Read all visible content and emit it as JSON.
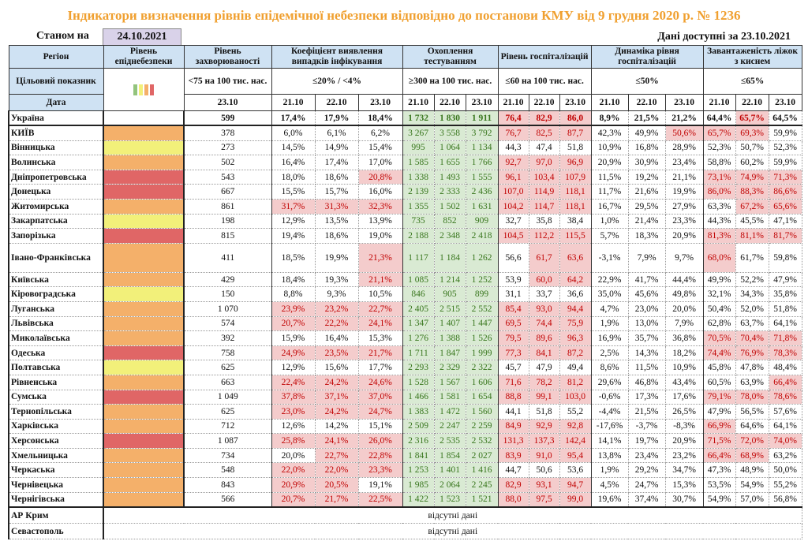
{
  "title": "Індикатори визначення рівнів епідемічної небезпеки відповідно до постанови КМУ від 9 грудня 2020 р. № 1236",
  "as_of_label": "Станом на",
  "as_of_date": "24.10.2021",
  "available_label": "Дані доступні за  23.10.2021",
  "colors": {
    "title": "#f0a030",
    "header_bg": "#cfe2f3",
    "level_orange": "#f4b06a",
    "level_yellow": "#f2f07a",
    "level_red": "#e06666",
    "level_green": "#93c47d",
    "alert_bg": "#f4cccc",
    "alert_text": "#c00000",
    "ok_bg": "#d9ead3",
    "ok_text": "#38761d"
  },
  "headers": {
    "region": "Регіон",
    "level": "Рівень епіднебезпеки",
    "incidence": "Рівень захворюваності",
    "coef": "Коефіцієнт виявлення випадків інфікування",
    "testing": "Охоплення тестуванням",
    "hosp": "Рівень госпіталізацій",
    "dynamics": "Динаміка рівня госпіталізацій",
    "oxygen": "Завантаженість ліжок з киснем"
  },
  "targets": {
    "label": "Цільовий показник",
    "incidence": "<75 на 100 тис. нас.",
    "coef": "≤20% / <4%",
    "testing": "≥300 на 100 тис. нас.",
    "hosp": "≤60 на 100 тис. нас.",
    "dynamics": "≤50%",
    "oxygen": "≤65%"
  },
  "thresholds": {
    "coef": 20,
    "hosp": 60,
    "dynamics": 50,
    "oxygen": 65
  },
  "date_label": "Дата",
  "dates": {
    "incidence": "23.10",
    "triple": [
      "21.10",
      "22.10",
      "23.10"
    ]
  },
  "ukraine": {
    "name": "Україна",
    "incidence": "599",
    "coef": [
      "17,4%",
      "17,9%",
      "18,4%"
    ],
    "testing": [
      "1 732",
      "1 830",
      "1 911"
    ],
    "hosp": [
      "76,4",
      "82,9",
      "86,0"
    ],
    "dynamics": [
      "8,9%",
      "21,5%",
      "21,2%"
    ],
    "oxygen": [
      "64,4%",
      "65,7%",
      "64,5%"
    ]
  },
  "regions": [
    {
      "name": "КИЇВ",
      "level": "orange",
      "incidence": "378",
      "coef": [
        "6,0%",
        "6,1%",
        "6,2%"
      ],
      "testing": [
        "3 267",
        "3 558",
        "3 792"
      ],
      "hosp": [
        "76,7",
        "82,5",
        "87,7"
      ],
      "dynamics": [
        "42,3%",
        "49,9%",
        "50,6%"
      ],
      "oxygen": [
        "65,7%",
        "69,3%",
        "59,9%"
      ]
    },
    {
      "name": "Вінницька",
      "level": "yellow",
      "incidence": "273",
      "coef": [
        "14,5%",
        "14,9%",
        "15,4%"
      ],
      "testing": [
        "995",
        "1 064",
        "1 134"
      ],
      "hosp": [
        "44,3",
        "47,4",
        "51,8"
      ],
      "dynamics": [
        "10,9%",
        "16,8%",
        "28,9%"
      ],
      "oxygen": [
        "52,3%",
        "50,7%",
        "52,3%"
      ]
    },
    {
      "name": "Волинська",
      "level": "orange",
      "incidence": "502",
      "coef": [
        "16,4%",
        "17,4%",
        "17,0%"
      ],
      "testing": [
        "1 585",
        "1 655",
        "1 766"
      ],
      "hosp": [
        "92,7",
        "97,0",
        "96,9"
      ],
      "dynamics": [
        "20,9%",
        "30,9%",
        "23,4%"
      ],
      "oxygen": [
        "58,8%",
        "60,2%",
        "59,9%"
      ]
    },
    {
      "name": "Дніпропетровська",
      "level": "red",
      "incidence": "543",
      "coef": [
        "18,0%",
        "18,6%",
        "20,8%"
      ],
      "testing": [
        "1 338",
        "1 493",
        "1 555"
      ],
      "hosp": [
        "96,1",
        "103,4",
        "107,9"
      ],
      "dynamics": [
        "11,5%",
        "19,2%",
        "21,1%"
      ],
      "oxygen": [
        "73,1%",
        "74,9%",
        "71,3%"
      ]
    },
    {
      "name": "Донецька",
      "level": "red",
      "incidence": "667",
      "coef": [
        "15,5%",
        "15,7%",
        "16,0%"
      ],
      "testing": [
        "2 139",
        "2 333",
        "2 436"
      ],
      "hosp": [
        "107,0",
        "114,9",
        "118,1"
      ],
      "dynamics": [
        "11,7%",
        "21,6%",
        "19,9%"
      ],
      "oxygen": [
        "86,0%",
        "88,3%",
        "86,6%"
      ]
    },
    {
      "name": "Житомирська",
      "level": "orange",
      "incidence": "861",
      "coef": [
        "31,7%",
        "31,3%",
        "32,3%"
      ],
      "testing": [
        "1 355",
        "1 502",
        "1 631"
      ],
      "hosp": [
        "104,2",
        "114,7",
        "118,1"
      ],
      "dynamics": [
        "16,7%",
        "29,5%",
        "27,9%"
      ],
      "oxygen": [
        "63,3%",
        "67,2%",
        "65,6%"
      ]
    },
    {
      "name": "Закарпатська",
      "level": "yellow",
      "incidence": "198",
      "coef": [
        "12,9%",
        "13,5%",
        "13,9%"
      ],
      "testing": [
        "735",
        "852",
        "909"
      ],
      "hosp": [
        "32,7",
        "35,8",
        "38,4"
      ],
      "dynamics": [
        "1,0%",
        "21,4%",
        "23,3%"
      ],
      "oxygen": [
        "44,3%",
        "45,5%",
        "47,1%"
      ]
    },
    {
      "name": "Запорізька",
      "level": "red",
      "incidence": "815",
      "coef": [
        "19,4%",
        "18,6%",
        "19,0%"
      ],
      "testing": [
        "2 188",
        "2 348",
        "2 418"
      ],
      "hosp": [
        "104,5",
        "112,2",
        "115,5"
      ],
      "dynamics": [
        "5,7%",
        "18,3%",
        "20,9%"
      ],
      "oxygen": [
        "81,3%",
        "81,1%",
        "81,7%"
      ]
    },
    {
      "name": "Івано-Франківська",
      "level": "orange",
      "incidence": "411",
      "coef": [
        "18,5%",
        "19,9%",
        "21,3%"
      ],
      "testing": [
        "1 117",
        "1 184",
        "1 262"
      ],
      "hosp": [
        "56,6",
        "61,7",
        "63,6"
      ],
      "dynamics": [
        "-3,1%",
        "7,9%",
        "9,7%"
      ],
      "oxygen": [
        "68,0%",
        "61,7%",
        "59,8%"
      ]
    },
    {
      "name": "Київська",
      "level": "orange",
      "incidence": "429",
      "coef": [
        "18,4%",
        "19,3%",
        "21,1%"
      ],
      "testing": [
        "1 085",
        "1 214",
        "1 252"
      ],
      "hosp": [
        "53,9",
        "60,0",
        "64,2"
      ],
      "dynamics": [
        "22,9%",
        "41,7%",
        "44,4%"
      ],
      "oxygen": [
        "49,9%",
        "52,2%",
        "47,9%"
      ]
    },
    {
      "name": "Кіровоградська",
      "level": "yellow",
      "incidence": "150",
      "coef": [
        "8,8%",
        "9,3%",
        "10,5%"
      ],
      "testing": [
        "846",
        "905",
        "899"
      ],
      "hosp": [
        "31,1",
        "33,7",
        "36,6"
      ],
      "dynamics": [
        "35,0%",
        "45,6%",
        "49,8%"
      ],
      "oxygen": [
        "32,1%",
        "34,3%",
        "35,8%"
      ]
    },
    {
      "name": "Луганська",
      "level": "orange",
      "incidence": "1 070",
      "coef": [
        "23,9%",
        "23,2%",
        "22,7%"
      ],
      "testing": [
        "2 405",
        "2 515",
        "2 552"
      ],
      "hosp": [
        "85,4",
        "93,0",
        "94,4"
      ],
      "dynamics": [
        "4,7%",
        "23,0%",
        "20,0%"
      ],
      "oxygen": [
        "50,4%",
        "52,0%",
        "51,8%"
      ]
    },
    {
      "name": "Львівська",
      "level": "orange",
      "incidence": "574",
      "coef": [
        "20,7%",
        "22,2%",
        "24,1%"
      ],
      "testing": [
        "1 347",
        "1 407",
        "1 447"
      ],
      "hosp": [
        "69,5",
        "74,4",
        "75,9"
      ],
      "dynamics": [
        "1,9%",
        "13,0%",
        "7,9%"
      ],
      "oxygen": [
        "62,8%",
        "63,7%",
        "64,1%"
      ]
    },
    {
      "name": "Миколаївська",
      "level": "orange",
      "incidence": "392",
      "coef": [
        "15,9%",
        "16,4%",
        "15,3%"
      ],
      "testing": [
        "1 276",
        "1 388",
        "1 526"
      ],
      "hosp": [
        "79,5",
        "89,6",
        "96,3"
      ],
      "dynamics": [
        "16,9%",
        "35,7%",
        "36,8%"
      ],
      "oxygen": [
        "70,5%",
        "70,4%",
        "71,8%"
      ]
    },
    {
      "name": "Одеська",
      "level": "red",
      "incidence": "758",
      "coef": [
        "24,9%",
        "23,5%",
        "21,7%"
      ],
      "testing": [
        "1 711",
        "1 847",
        "1 999"
      ],
      "hosp": [
        "77,3",
        "84,1",
        "87,2"
      ],
      "dynamics": [
        "2,5%",
        "14,3%",
        "18,2%"
      ],
      "oxygen": [
        "74,4%",
        "76,9%",
        "78,3%"
      ]
    },
    {
      "name": "Полтавська",
      "level": "yellow",
      "incidence": "625",
      "coef": [
        "12,9%",
        "15,6%",
        "17,7%"
      ],
      "testing": [
        "2 293",
        "2 329",
        "2 322"
      ],
      "hosp": [
        "45,7",
        "47,9",
        "49,4"
      ],
      "dynamics": [
        "8,6%",
        "11,5%",
        "10,9%"
      ],
      "oxygen": [
        "45,8%",
        "47,8%",
        "48,4%"
      ]
    },
    {
      "name": "Рівненська",
      "level": "orange",
      "incidence": "663",
      "coef": [
        "22,4%",
        "24,2%",
        "24,6%"
      ],
      "testing": [
        "1 528",
        "1 567",
        "1 606"
      ],
      "hosp": [
        "71,6",
        "78,2",
        "81,2"
      ],
      "dynamics": [
        "29,6%",
        "46,8%",
        "43,4%"
      ],
      "oxygen": [
        "60,5%",
        "63,9%",
        "66,4%"
      ]
    },
    {
      "name": "Сумська",
      "level": "red",
      "incidence": "1 049",
      "coef": [
        "37,8%",
        "37,1%",
        "37,0%"
      ],
      "testing": [
        "1 466",
        "1 581",
        "1 654"
      ],
      "hosp": [
        "88,8",
        "99,1",
        "103,0"
      ],
      "dynamics": [
        "-0,6%",
        "17,3%",
        "17,6%"
      ],
      "oxygen": [
        "79,1%",
        "78,0%",
        "78,6%"
      ]
    },
    {
      "name": "Тернопільська",
      "level": "orange",
      "incidence": "625",
      "coef": [
        "23,0%",
        "24,2%",
        "24,7%"
      ],
      "testing": [
        "1 383",
        "1 472",
        "1 560"
      ],
      "hosp": [
        "44,1",
        "51,8",
        "55,2"
      ],
      "dynamics": [
        "-4,4%",
        "21,5%",
        "26,5%"
      ],
      "oxygen": [
        "47,9%",
        "56,5%",
        "57,6%"
      ]
    },
    {
      "name": "Харківська",
      "level": "orange",
      "incidence": "712",
      "coef": [
        "12,6%",
        "14,2%",
        "15,1%"
      ],
      "testing": [
        "2 509",
        "2 247",
        "2 259"
      ],
      "hosp": [
        "84,9",
        "92,9",
        "92,8"
      ],
      "dynamics": [
        "-17,6%",
        "-3,7%",
        "-8,3%"
      ],
      "oxygen": [
        "66,9%",
        "64,6%",
        "64,1%"
      ]
    },
    {
      "name": "Херсонська",
      "level": "red",
      "incidence": "1 087",
      "coef": [
        "25,8%",
        "24,1%",
        "26,0%"
      ],
      "testing": [
        "2 316",
        "2 535",
        "2 532"
      ],
      "hosp": [
        "131,3",
        "137,3",
        "142,4"
      ],
      "dynamics": [
        "14,1%",
        "19,7%",
        "20,9%"
      ],
      "oxygen": [
        "71,5%",
        "72,0%",
        "74,0%"
      ]
    },
    {
      "name": "Хмельницька",
      "level": "orange",
      "incidence": "734",
      "coef": [
        "20,0%",
        "22,7%",
        "22,8%"
      ],
      "testing": [
        "1 841",
        "1 854",
        "2 027"
      ],
      "hosp": [
        "83,9",
        "91,0",
        "95,4"
      ],
      "dynamics": [
        "13,8%",
        "23,4%",
        "23,2%"
      ],
      "oxygen": [
        "66,4%",
        "68,9%",
        "63,2%"
      ]
    },
    {
      "name": "Черкаська",
      "level": "orange",
      "incidence": "548",
      "coef": [
        "22,0%",
        "22,0%",
        "23,3%"
      ],
      "testing": [
        "1 253",
        "1 401",
        "1 416"
      ],
      "hosp": [
        "44,7",
        "50,6",
        "53,6"
      ],
      "dynamics": [
        "1,9%",
        "29,2%",
        "34,7%"
      ],
      "oxygen": [
        "47,3%",
        "48,9%",
        "50,0%"
      ]
    },
    {
      "name": "Чернівецька",
      "level": "orange",
      "incidence": "843",
      "coef": [
        "20,9%",
        "20,5%",
        "19,1%"
      ],
      "testing": [
        "1 985",
        "2 064",
        "2 245"
      ],
      "hosp": [
        "82,9",
        "93,1",
        "94,7"
      ],
      "dynamics": [
        "4,5%",
        "24,7%",
        "15,3%"
      ],
      "oxygen": [
        "53,5%",
        "54,9%",
        "55,2%"
      ]
    },
    {
      "name": "Чернігівська",
      "level": "orange",
      "incidence": "566",
      "coef": [
        "20,7%",
        "21,7%",
        "22,5%"
      ],
      "testing": [
        "1 422",
        "1 523",
        "1 521"
      ],
      "hosp": [
        "88,0",
        "97,5",
        "99,0"
      ],
      "dynamics": [
        "19,6%",
        "37,4%",
        "30,7%"
      ],
      "oxygen": [
        "54,9%",
        "57,0%",
        "56,8%"
      ]
    }
  ],
  "missing": [
    {
      "name": "АР Крим",
      "text": "відсутні дані"
    },
    {
      "name": "Севастополь",
      "text": "відсутні дані"
    }
  ]
}
